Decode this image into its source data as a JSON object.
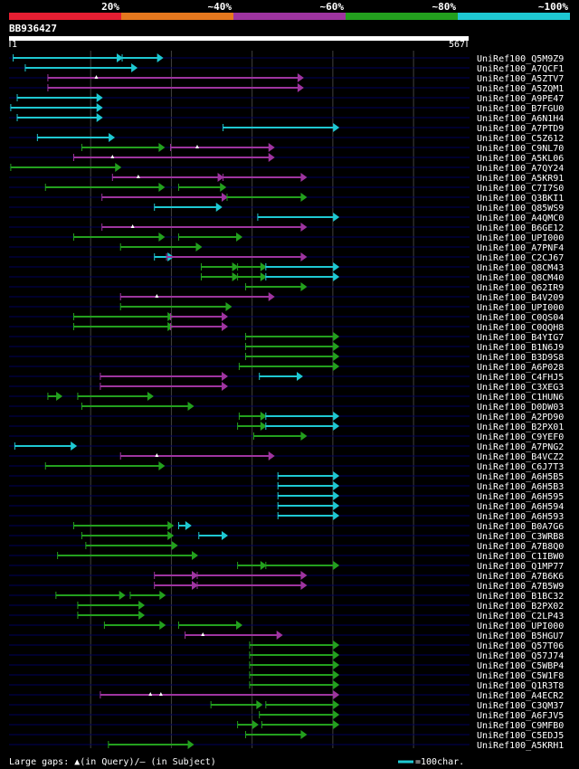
{
  "colors": {
    "background": "#000000",
    "row_line": "#00005a",
    "grid": "#404040",
    "mark": "#ffffff"
  },
  "chart_data": {
    "type": "alignment-overview",
    "query_id": "BB936427",
    "query_length": 567,
    "ruler_start_label": "1",
    "ruler_end_label": "567",
    "identity_legend": [
      {
        "label": "20%",
        "color": "#e61e32"
      },
      {
        "label": "~40%",
        "color": "#e6781e"
      },
      {
        "label": "~60%",
        "color": "#9e34a0"
      },
      {
        "label": "~80%",
        "color": "#23a01e"
      },
      {
        "label": "~100%",
        "color": "#1ec8d2"
      }
    ],
    "legend_gaps_text": "Large gaps: ▲(in Query)/– (in Subject)",
    "legend_scale_text": "=100char.",
    "hits": [
      {
        "name": "UniRef100_Q5M9Z9",
        "segs": [
          [
            5,
            140,
            "c"
          ],
          [
            140,
            190,
            "c"
          ]
        ],
        "mq": [],
        "ms": []
      },
      {
        "name": "UniRef100_A7QCF1",
        "segs": [
          [
            20,
            158,
            "c"
          ]
        ],
        "mq": [],
        "ms": []
      },
      {
        "name": "UniRef100_A5ZTV7",
        "segs": [
          [
            48,
            364,
            "m"
          ]
        ],
        "mq": [
          108
        ],
        "ms": []
      },
      {
        "name": "UniRef100_A5ZQM1",
        "segs": [
          [
            48,
            364,
            "m"
          ]
        ],
        "mq": [],
        "ms": []
      },
      {
        "name": "UniRef100_A9PE47",
        "segs": [
          [
            10,
            115,
            "c"
          ]
        ],
        "mq": [],
        "ms": []
      },
      {
        "name": "UniRef100_B7FGU0",
        "segs": [
          [
            2,
            115,
            "c"
          ]
        ],
        "mq": [],
        "ms": []
      },
      {
        "name": "UniRef100_A6N1H4",
        "segs": [
          [
            10,
            115,
            "c"
          ]
        ],
        "mq": [],
        "ms": []
      },
      {
        "name": "UniRef100_A7PTD9",
        "segs": [
          [
            265,
            408,
            "c"
          ]
        ],
        "mq": [],
        "ms": []
      },
      {
        "name": "UniRef100_C5Z612",
        "segs": [
          [
            35,
            130,
            "c"
          ]
        ],
        "mq": [],
        "ms": []
      },
      {
        "name": "UniRef100_C9NL70",
        "segs": [
          [
            90,
            192,
            "g"
          ],
          [
            200,
            328,
            "m"
          ]
        ],
        "mq": [
          233
        ],
        "ms": []
      },
      {
        "name": "UniRef100_A5KL06",
        "segs": [
          [
            80,
            328,
            "m"
          ]
        ],
        "mq": [
          128
        ],
        "ms": []
      },
      {
        "name": "UniRef100_A7QY24",
        "segs": [
          [
            2,
            138,
            "g"
          ]
        ],
        "mq": [],
        "ms": []
      },
      {
        "name": "UniRef100_A5KR91",
        "segs": [
          [
            128,
            265,
            "m"
          ],
          [
            265,
            368,
            "m"
          ]
        ],
        "mq": [
          160
        ],
        "ms": []
      },
      {
        "name": "UniRef100_C7I7S0",
        "segs": [
          [
            45,
            192,
            "g"
          ],
          [
            210,
            268,
            "g"
          ]
        ],
        "mq": [],
        "ms": []
      },
      {
        "name": "UniRef100_Q3BKI1",
        "segs": [
          [
            115,
            270,
            "m"
          ],
          [
            270,
            368,
            "g"
          ]
        ],
        "mq": [],
        "ms": []
      },
      {
        "name": "UniRef100_Q85WS9",
        "segs": [
          [
            180,
            263,
            "c"
          ]
        ],
        "mq": [],
        "ms": []
      },
      {
        "name": "UniRef100_A4QMC0",
        "segs": [
          [
            308,
            408,
            "c"
          ]
        ],
        "mq": [],
        "ms": []
      },
      {
        "name": "UniRef100_B6GE12",
        "segs": [
          [
            115,
            368,
            "m"
          ]
        ],
        "mq": [
          153
        ],
        "ms": []
      },
      {
        "name": "UniRef100_UPI000",
        "segs": [
          [
            80,
            192,
            "g"
          ],
          [
            210,
            288,
            "g"
          ]
        ],
        "mq": [],
        "ms": []
      },
      {
        "name": "UniRef100_A7PNF4",
        "segs": [
          [
            138,
            238,
            "g"
          ]
        ],
        "mq": [],
        "ms": []
      },
      {
        "name": "UniRef100_C2CJ67",
        "segs": [
          [
            180,
            203,
            "c"
          ],
          [
            195,
            368,
            "m"
          ]
        ],
        "mq": [],
        "ms": []
      },
      {
        "name": "UniRef100_Q8CM43",
        "segs": [
          [
            238,
            283,
            "g"
          ],
          [
            283,
            318,
            "g"
          ],
          [
            318,
            408,
            "c"
          ]
        ],
        "mq": [],
        "ms": []
      },
      {
        "name": "UniRef100_Q8CM40",
        "segs": [
          [
            238,
            283,
            "g"
          ],
          [
            283,
            318,
            "g"
          ],
          [
            318,
            408,
            "c"
          ]
        ],
        "mq": [],
        "ms": []
      },
      {
        "name": "UniRef100_Q62IR9",
        "segs": [
          [
            293,
            368,
            "g"
          ]
        ],
        "mq": [],
        "ms": []
      },
      {
        "name": "UniRef100_B4V209",
        "segs": [
          [
            138,
            328,
            "m"
          ]
        ],
        "mq": [
          183
        ],
        "ms": []
      },
      {
        "name": "UniRef100_UPI000",
        "segs": [
          [
            138,
            275,
            "g"
          ]
        ],
        "mq": [],
        "ms": []
      },
      {
        "name": "UniRef100_C0QS04",
        "segs": [
          [
            80,
            203,
            "g"
          ],
          [
            200,
            270,
            "m"
          ]
        ],
        "mq": [],
        "ms": []
      },
      {
        "name": "UniRef100_C0QQH8",
        "segs": [
          [
            80,
            203,
            "g"
          ],
          [
            200,
            270,
            "m"
          ]
        ],
        "mq": [],
        "ms": []
      },
      {
        "name": "UniRef100_B4YIG7",
        "segs": [
          [
            293,
            408,
            "g"
          ]
        ],
        "mq": [],
        "ms": []
      },
      {
        "name": "UniRef100_B1N6J9",
        "segs": [
          [
            293,
            408,
            "g"
          ]
        ],
        "mq": [],
        "ms": []
      },
      {
        "name": "UniRef100_B3D9S8",
        "segs": [
          [
            293,
            408,
            "g"
          ]
        ],
        "mq": [],
        "ms": []
      },
      {
        "name": "UniRef100_A6P028",
        "segs": [
          [
            285,
            408,
            "g"
          ]
        ],
        "mq": [],
        "ms": []
      },
      {
        "name": "UniRef100_C4FHJ5",
        "segs": [
          [
            113,
            270,
            "m"
          ],
          [
            310,
            363,
            "c"
          ]
        ],
        "mq": [],
        "ms": []
      },
      {
        "name": "UniRef100_C3XEG3",
        "segs": [
          [
            113,
            270,
            "m"
          ]
        ],
        "mq": [],
        "ms": []
      },
      {
        "name": "UniRef100_C1HUN6",
        "segs": [
          [
            48,
            65,
            "g"
          ],
          [
            85,
            178,
            "g"
          ]
        ],
        "mq": [],
        "ms": []
      },
      {
        "name": "UniRef100_D0DW03",
        "segs": [
          [
            90,
            228,
            "g"
          ]
        ],
        "mq": [],
        "ms": []
      },
      {
        "name": "UniRef100_A2PD90",
        "segs": [
          [
            285,
            318,
            "g"
          ],
          [
            318,
            408,
            "c"
          ]
        ],
        "mq": [],
        "ms": []
      },
      {
        "name": "UniRef100_B2PX01",
        "segs": [
          [
            283,
            318,
            "g"
          ],
          [
            318,
            408,
            "c"
          ]
        ],
        "mq": [],
        "ms": []
      },
      {
        "name": "UniRef100_C9YEF0",
        "segs": [
          [
            303,
            368,
            "g"
          ]
        ],
        "mq": [],
        "ms": []
      },
      {
        "name": "UniRef100_A7PNG2",
        "segs": [
          [
            7,
            83,
            "c"
          ]
        ],
        "mq": [],
        "ms": []
      },
      {
        "name": "UniRef100_B4VCZ2",
        "segs": [
          [
            138,
            328,
            "m"
          ]
        ],
        "mq": [
          183
        ],
        "ms": []
      },
      {
        "name": "UniRef100_C6J7T3",
        "segs": [
          [
            45,
            192,
            "g"
          ]
        ],
        "mq": [],
        "ms": []
      },
      {
        "name": "UniRef100_A6H5B5",
        "segs": [
          [
            333,
            408,
            "c"
          ]
        ],
        "mq": [],
        "ms": []
      },
      {
        "name": "UniRef100_A6H5B3",
        "segs": [
          [
            333,
            408,
            "c"
          ]
        ],
        "mq": [],
        "ms": []
      },
      {
        "name": "UniRef100_A6H595",
        "segs": [
          [
            333,
            408,
            "c"
          ]
        ],
        "mq": [],
        "ms": []
      },
      {
        "name": "UniRef100_A6H594",
        "segs": [
          [
            333,
            408,
            "c"
          ]
        ],
        "mq": [],
        "ms": []
      },
      {
        "name": "UniRef100_A6H593",
        "segs": [
          [
            333,
            408,
            "c"
          ]
        ],
        "mq": [],
        "ms": []
      },
      {
        "name": "UniRef100_B0A7G6",
        "segs": [
          [
            80,
            203,
            "g"
          ],
          [
            210,
            225,
            "c"
          ]
        ],
        "mq": [],
        "ms": []
      },
      {
        "name": "UniRef100_C3WRB8",
        "segs": [
          [
            90,
            203,
            "g"
          ],
          [
            235,
            270,
            "c"
          ]
        ],
        "mq": [],
        "ms": []
      },
      {
        "name": "UniRef100_A7B8Q0",
        "segs": [
          [
            95,
            208,
            "g"
          ]
        ],
        "mq": [],
        "ms": []
      },
      {
        "name": "UniRef100_C1IBW0",
        "segs": [
          [
            60,
            233,
            "g"
          ]
        ],
        "mq": [],
        "ms": []
      },
      {
        "name": "UniRef100_Q1MP77",
        "segs": [
          [
            283,
            318,
            "g"
          ],
          [
            318,
            408,
            "g"
          ]
        ],
        "mq": [],
        "ms": []
      },
      {
        "name": "UniRef100_A7B6K6",
        "segs": [
          [
            180,
            233,
            "m"
          ],
          [
            233,
            368,
            "m"
          ]
        ],
        "mq": [],
        "ms": []
      },
      {
        "name": "UniRef100_A7B5W9",
        "segs": [
          [
            180,
            233,
            "m"
          ],
          [
            233,
            368,
            "m"
          ]
        ],
        "mq": [],
        "ms": []
      },
      {
        "name": "UniRef100_B1BC32",
        "segs": [
          [
            58,
            143,
            "g"
          ],
          [
            150,
            193,
            "g"
          ]
        ],
        "mq": [],
        "ms": []
      },
      {
        "name": "UniRef100_B2PX02",
        "segs": [
          [
            85,
            167,
            "g"
          ]
        ],
        "mq": [],
        "ms": []
      },
      {
        "name": "UniRef100_C2LP43",
        "segs": [
          [
            85,
            167,
            "g"
          ]
        ],
        "mq": [],
        "ms": []
      },
      {
        "name": "UniRef100_UPI000",
        "segs": [
          [
            118,
            193,
            "g"
          ],
          [
            210,
            288,
            "g"
          ]
        ],
        "mq": [],
        "ms": []
      },
      {
        "name": "UniRef100_B5HGU7",
        "segs": [
          [
            218,
            338,
            "m"
          ]
        ],
        "mq": [
          240
        ],
        "ms": []
      },
      {
        "name": "UniRef100_Q57T06",
        "segs": [
          [
            298,
            408,
            "g"
          ]
        ],
        "mq": [],
        "ms": []
      },
      {
        "name": "UniRef100_Q57J74",
        "segs": [
          [
            298,
            408,
            "g"
          ]
        ],
        "mq": [],
        "ms": []
      },
      {
        "name": "UniRef100_C5WBP4",
        "segs": [
          [
            298,
            408,
            "g"
          ]
        ],
        "mq": [],
        "ms": []
      },
      {
        "name": "UniRef100_C5W1F8",
        "segs": [
          [
            298,
            408,
            "g"
          ]
        ],
        "mq": [],
        "ms": []
      },
      {
        "name": "UniRef100_Q1R3T8",
        "segs": [
          [
            298,
            408,
            "g"
          ]
        ],
        "mq": [],
        "ms": []
      },
      {
        "name": "UniRef100_A4ECR2",
        "segs": [
          [
            113,
            408,
            "m"
          ]
        ],
        "mq": [
          175,
          188
        ],
        "ms": []
      },
      {
        "name": "UniRef100_C3QM37",
        "segs": [
          [
            250,
            313,
            "g"
          ],
          [
            318,
            408,
            "g"
          ]
        ],
        "mq": [],
        "ms": []
      },
      {
        "name": "UniRef100_A6FJV5",
        "segs": [
          [
            310,
            408,
            "g"
          ]
        ],
        "mq": [],
        "ms": []
      },
      {
        "name": "UniRef100_C9MFB0",
        "segs": [
          [
            283,
            308,
            "g"
          ],
          [
            313,
            408,
            "g"
          ]
        ],
        "mq": [],
        "ms": []
      },
      {
        "name": "UniRef100_C5EDJ5",
        "segs": [
          [
            293,
            368,
            "g"
          ]
        ],
        "mq": [],
        "ms": []
      },
      {
        "name": "UniRef100_A5KRH1",
        "segs": [
          [
            123,
            228,
            "g"
          ]
        ],
        "mq": [],
        "ms": []
      }
    ]
  }
}
